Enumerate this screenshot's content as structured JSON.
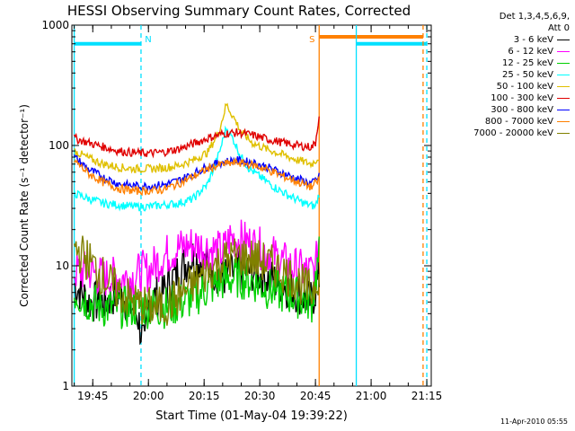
{
  "chart_data": {
    "type": "line",
    "title": "HESSI Observing Summary Count Rates, Corrected",
    "xlabel": "Start Time (01-May-04 19:39:22)",
    "ylabel": "Corrected Count Rate (s⁻¹ detector⁻¹)",
    "ylim": [
      1,
      1000
    ],
    "y_scale": "log",
    "yticks": [
      "1",
      "10",
      "100",
      "1000"
    ],
    "x_range_minutes": [
      19.658,
      21.27
    ],
    "xticks": [
      "19:45",
      "20:00",
      "20:15",
      "20:30",
      "20:45",
      "21:00",
      "21:15"
    ],
    "grid": false,
    "legend_position": "top-right outside",
    "legend_header": [
      "Det 1,3,4,5,6,9,",
      "Att 0"
    ],
    "series": [
      {
        "name": "3 - 6 keV",
        "color": "#000000",
        "points": [
          [
            "19:40",
            7
          ],
          [
            "19:44",
            5
          ],
          [
            "19:48",
            5
          ],
          [
            "19:52",
            6
          ],
          [
            "19:57",
            4
          ],
          [
            "19:59",
            2
          ],
          [
            "20:00",
            5
          ],
          [
            "20:04",
            6
          ],
          [
            "20:08",
            9
          ],
          [
            "20:12",
            12
          ],
          [
            "20:16",
            10
          ],
          [
            "20:20",
            8
          ],
          [
            "20:24",
            9
          ],
          [
            "20:28",
            9
          ],
          [
            "20:32",
            8
          ],
          [
            "20:36",
            7
          ],
          [
            "20:40",
            6
          ],
          [
            "20:44",
            5
          ],
          [
            "20:46",
            8
          ]
        ]
      },
      {
        "name": "6 - 12 keV",
        "color": "#ff00ff",
        "points": [
          [
            "19:40",
            9
          ],
          [
            "19:44",
            9
          ],
          [
            "19:48",
            8
          ],
          [
            "19:52",
            8
          ],
          [
            "19:56",
            8
          ],
          [
            "19:58",
            9
          ],
          [
            "20:00",
            9
          ],
          [
            "20:04",
            12
          ],
          [
            "20:08",
            14
          ],
          [
            "20:12",
            15
          ],
          [
            "20:16",
            14
          ],
          [
            "20:20",
            13
          ],
          [
            "20:22",
            17
          ],
          [
            "20:26",
            16
          ],
          [
            "20:30",
            14
          ],
          [
            "20:34",
            12
          ],
          [
            "20:38",
            10
          ],
          [
            "20:42",
            9
          ],
          [
            "20:45",
            9
          ],
          [
            "20:46",
            18
          ]
        ]
      },
      {
        "name": "12 - 25 keV",
        "color": "#00d000",
        "points": [
          [
            "19:40",
            6
          ],
          [
            "19:44",
            5
          ],
          [
            "19:48",
            4.5
          ],
          [
            "19:52",
            4.5
          ],
          [
            "19:56",
            4.5
          ],
          [
            "20:00",
            4.5
          ],
          [
            "20:04",
            4.5
          ],
          [
            "20:08",
            4.8
          ],
          [
            "20:12",
            5.5
          ],
          [
            "20:16",
            6.5
          ],
          [
            "20:20",
            7.5
          ],
          [
            "20:24",
            8
          ],
          [
            "20:28",
            7.5
          ],
          [
            "20:32",
            6.5
          ],
          [
            "20:36",
            6
          ],
          [
            "20:40",
            5.5
          ],
          [
            "20:44",
            5
          ],
          [
            "20:46",
            12
          ]
        ]
      },
      {
        "name": "25 - 50 keV",
        "color": "#00ffff",
        "points": [
          [
            "19:40",
            40
          ],
          [
            "19:44",
            36
          ],
          [
            "19:48",
            33
          ],
          [
            "19:52",
            32
          ],
          [
            "19:56",
            31
          ],
          [
            "20:00",
            31
          ],
          [
            "20:04",
            32
          ],
          [
            "20:08",
            33
          ],
          [
            "20:12",
            36
          ],
          [
            "20:16",
            48
          ],
          [
            "20:19",
            85
          ],
          [
            "20:21",
            140
          ],
          [
            "20:23",
            110
          ],
          [
            "20:25",
            80
          ],
          [
            "20:27",
            65
          ],
          [
            "20:30",
            55
          ],
          [
            "20:34",
            45
          ],
          [
            "20:38",
            38
          ],
          [
            "20:42",
            33
          ],
          [
            "20:45",
            31
          ],
          [
            "20:46",
            40
          ]
        ]
      },
      {
        "name": "50 - 100 keV",
        "color": "#e0c000",
        "points": [
          [
            "19:40",
            90
          ],
          [
            "19:44",
            78
          ],
          [
            "19:48",
            70
          ],
          [
            "19:52",
            66
          ],
          [
            "19:56",
            64
          ],
          [
            "20:00",
            64
          ],
          [
            "20:04",
            65
          ],
          [
            "20:08",
            68
          ],
          [
            "20:12",
            75
          ],
          [
            "20:16",
            88
          ],
          [
            "20:19",
            130
          ],
          [
            "20:21",
            220
          ],
          [
            "20:23",
            170
          ],
          [
            "20:25",
            130
          ],
          [
            "20:28",
            105
          ],
          [
            "20:32",
            93
          ],
          [
            "20:36",
            84
          ],
          [
            "20:40",
            76
          ],
          [
            "20:44",
            70
          ],
          [
            "20:46",
            80
          ]
        ]
      },
      {
        "name": "100 - 300 keV",
        "color": "#e00000",
        "points": [
          [
            "19:40",
            115
          ],
          [
            "19:44",
            105
          ],
          [
            "19:48",
            97
          ],
          [
            "19:52",
            90
          ],
          [
            "19:56",
            87
          ],
          [
            "20:00",
            86
          ],
          [
            "20:04",
            88
          ],
          [
            "20:08",
            93
          ],
          [
            "20:12",
            103
          ],
          [
            "20:16",
            115
          ],
          [
            "20:20",
            125
          ],
          [
            "20:24",
            128
          ],
          [
            "20:28",
            122
          ],
          [
            "20:32",
            113
          ],
          [
            "20:36",
            106
          ],
          [
            "20:40",
            100
          ],
          [
            "20:44",
            97
          ],
          [
            "20:45",
            105
          ],
          [
            "20:46",
            180
          ]
        ]
      },
      {
        "name": "300 - 800 keV",
        "color": "#0000ff",
        "points": [
          [
            "19:40",
            80
          ],
          [
            "19:44",
            63
          ],
          [
            "19:48",
            54
          ],
          [
            "19:52",
            48
          ],
          [
            "19:56",
            46
          ],
          [
            "20:00",
            46
          ],
          [
            "20:04",
            47
          ],
          [
            "20:08",
            51
          ],
          [
            "20:12",
            58
          ],
          [
            "20:16",
            67
          ],
          [
            "20:20",
            73
          ],
          [
            "20:24",
            75
          ],
          [
            "20:28",
            72
          ],
          [
            "20:32",
            66
          ],
          [
            "20:36",
            59
          ],
          [
            "20:40",
            53
          ],
          [
            "20:44",
            48
          ],
          [
            "20:46",
            55
          ]
        ]
      },
      {
        "name": "800 - 7000 keV",
        "color": "#ff8000",
        "points": [
          [
            "19:40",
            75
          ],
          [
            "19:44",
            58
          ],
          [
            "19:48",
            49
          ],
          [
            "19:52",
            44
          ],
          [
            "19:56",
            42
          ],
          [
            "20:00",
            42
          ],
          [
            "20:04",
            43
          ],
          [
            "20:08",
            48
          ],
          [
            "20:12",
            55
          ],
          [
            "20:16",
            64
          ],
          [
            "20:20",
            70
          ],
          [
            "20:24",
            72
          ],
          [
            "20:28",
            69
          ],
          [
            "20:32",
            63
          ],
          [
            "20:36",
            56
          ],
          [
            "20:40",
            50
          ],
          [
            "20:44",
            45
          ],
          [
            "20:46",
            52
          ]
        ]
      },
      {
        "name": "7000 - 20000 keV",
        "color": "#808000",
        "points": [
          [
            "19:40",
            14
          ],
          [
            "19:44",
            11
          ],
          [
            "19:48",
            8
          ],
          [
            "19:52",
            6
          ],
          [
            "19:56",
            5
          ],
          [
            "20:00",
            4.5
          ],
          [
            "20:04",
            4.5
          ],
          [
            "20:08",
            5.5
          ],
          [
            "20:12",
            7
          ],
          [
            "20:16",
            9
          ],
          [
            "20:20",
            11
          ],
          [
            "20:24",
            12
          ],
          [
            "20:28",
            11.5
          ],
          [
            "20:32",
            10.5
          ],
          [
            "20:36",
            9
          ],
          [
            "20:40",
            7.5
          ],
          [
            "20:44",
            6
          ],
          [
            "20:46",
            9
          ]
        ]
      }
    ],
    "annotations": [
      {
        "text": "N",
        "color": "#00e0ff"
      },
      {
        "text": "S",
        "color": "#ff8000"
      }
    ],
    "state_bars": [
      {
        "color": "#00e0ff",
        "y": 700,
        "from": "19:40",
        "to": "19:58"
      },
      {
        "color": "#ff8000",
        "y": 800,
        "from": "20:46",
        "to": "21:14"
      },
      {
        "color": "#00e0ff",
        "y": 700,
        "from": "20:56",
        "to": "21:15"
      }
    ],
    "vlines": [
      {
        "x": "19:40",
        "color": "#00e0ff",
        "style": "solid"
      },
      {
        "x": "19:58",
        "color": "#00e0ff",
        "style": "dashed"
      },
      {
        "x": "20:46",
        "color": "#ff8000",
        "style": "solid"
      },
      {
        "x": "20:56",
        "color": "#00e0ff",
        "style": "solid"
      },
      {
        "x": "21:14",
        "color": "#ff8000",
        "style": "dashed"
      },
      {
        "x": "21:15",
        "color": "#00e0ff",
        "style": "dashed"
      }
    ]
  },
  "footer_timestamp": "11-Apr-2010 05:55"
}
